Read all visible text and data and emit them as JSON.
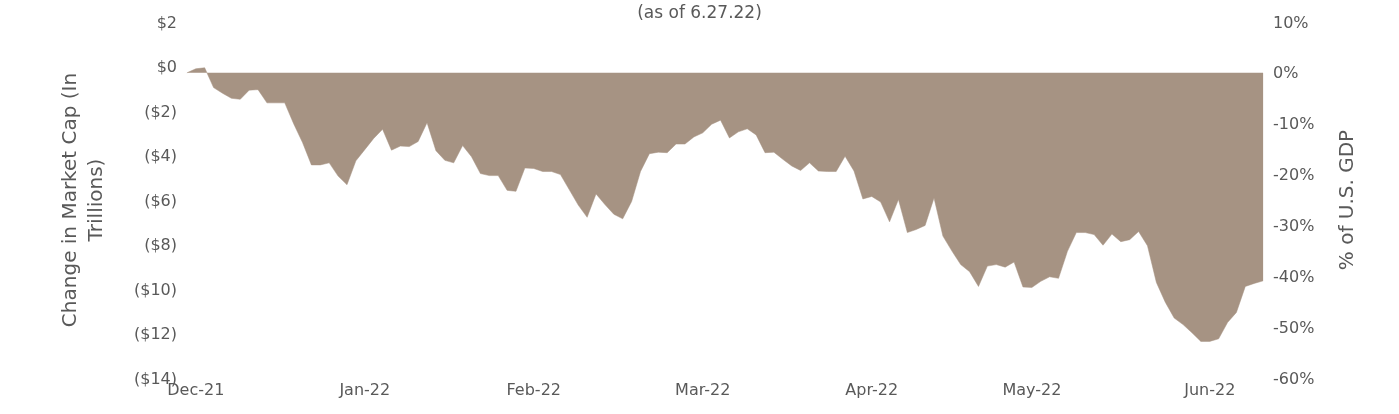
{
  "chart_data": {
    "type": "area",
    "title": "(as of 6.27.22)",
    "ylabel": "Change in Market Cap (In Trillions)",
    "y2label": "% of U.S. GDP",
    "categories": [
      null,
      "Dec-21",
      null,
      null,
      null,
      null,
      null,
      null,
      null,
      null,
      null,
      null,
      null,
      null,
      null,
      null,
      null,
      null,
      null,
      null,
      "Jan-22",
      null,
      null,
      null,
      null,
      null,
      null,
      null,
      null,
      null,
      null,
      null,
      null,
      null,
      null,
      null,
      null,
      null,
      null,
      "Feb-22",
      null,
      null,
      null,
      null,
      null,
      null,
      null,
      null,
      null,
      null,
      null,
      null,
      null,
      null,
      null,
      null,
      null,
      null,
      "Mar-22",
      null,
      null,
      null,
      null,
      null,
      null,
      null,
      null,
      null,
      null,
      null,
      null,
      null,
      null,
      null,
      null,
      null,
      null,
      "Apr-22",
      null,
      null,
      null,
      null,
      null,
      null,
      null,
      null,
      null,
      null,
      null,
      null,
      null,
      null,
      null,
      null,
      null,
      "May-22",
      null,
      null,
      null,
      null,
      null,
      null,
      null,
      null,
      null,
      null,
      null,
      null,
      null,
      null,
      null,
      null,
      null,
      null,
      null,
      "Jun-22",
      null,
      null,
      null,
      null,
      null,
      null
    ],
    "series": [
      {
        "color": "#a69383",
        "axis": "y2",
        "values": [
          0,
          0.8,
          1.0,
          -2.9,
          -4.0,
          -5.0,
          -5.2,
          -3.4,
          -3.3,
          -5.9,
          -5.9,
          -5.9,
          -10.0,
          -13.7,
          -18.1,
          -18.1,
          -17.7,
          -20.3,
          -22.0,
          -17.3,
          -15.1,
          -12.9,
          -11.1,
          -15.2,
          -14.4,
          -14.5,
          -13.5,
          -9.8,
          -15.3,
          -17.2,
          -17.7,
          -14.3,
          -16.5,
          -19.8,
          -20.2,
          -20.2,
          -23.1,
          -23.3,
          -18.7,
          -18.8,
          -19.4,
          -19.4,
          -20.0,
          -23.0,
          -26.0,
          -28.4,
          -23.8,
          -25.9,
          -27.8,
          -28.7,
          -25.3,
          -19.4,
          -15.9,
          -15.6,
          -15.7,
          -14.0,
          -14.0,
          -12.6,
          -11.8,
          -10.1,
          -9.3,
          -12.8,
          -11.6,
          -11.0,
          -12.2,
          -15.7,
          -15.6,
          -17.0,
          -18.3,
          -19.2,
          -17.7,
          -19.3,
          -19.4,
          -19.4,
          -16.4,
          -19.3,
          -24.8,
          -24.3,
          -25.4,
          -29.3,
          -24.9,
          -31.4,
          -30.8,
          -30.0,
          -24.6,
          -32.1,
          -35.0,
          -37.7,
          -39.1,
          -42.0,
          -38.0,
          -37.7,
          -38.2,
          -37.2,
          -42.1,
          -42.2,
          -41.0,
          -40.1,
          -40.4,
          -35.1,
          -31.4,
          -31.4,
          -31.8,
          -33.9,
          -31.7,
          -33.2,
          -32.8,
          -31.2,
          -34.0,
          -41.2,
          -45.1,
          -48.2,
          -49.5,
          -51.1,
          -52.8,
          -52.8,
          -52.3,
          -49.1,
          -47.1,
          -42.0,
          -41.4,
          -40.9
        ]
      }
    ],
    "ylim": [
      -14,
      2
    ],
    "yticks": [
      {
        "value": 2,
        "label": "$2"
      },
      {
        "value": 0,
        "label": "$0"
      },
      {
        "value": -2,
        "label": "($2)"
      },
      {
        "value": -4,
        "label": "($4)"
      },
      {
        "value": -6,
        "label": "($6)"
      },
      {
        "value": -8,
        "label": "($8)"
      },
      {
        "value": -10,
        "label": "($10)"
      },
      {
        "value": -12,
        "label": "($12)"
      },
      {
        "value": -14,
        "label": "($14)"
      }
    ],
    "y2lim": [
      -60,
      10
    ],
    "y2ticks": [
      {
        "value": 10,
        "label": "10%"
      },
      {
        "value": 0,
        "label": "0%"
      },
      {
        "value": -10,
        "label": "-10%"
      },
      {
        "value": -20,
        "label": "-20%"
      },
      {
        "value": -30,
        "label": "-30%"
      },
      {
        "value": -40,
        "label": "-40%"
      },
      {
        "value": -50,
        "label": "-50%"
      },
      {
        "value": -60,
        "label": "-60%"
      }
    ],
    "line_style": "solid"
  }
}
